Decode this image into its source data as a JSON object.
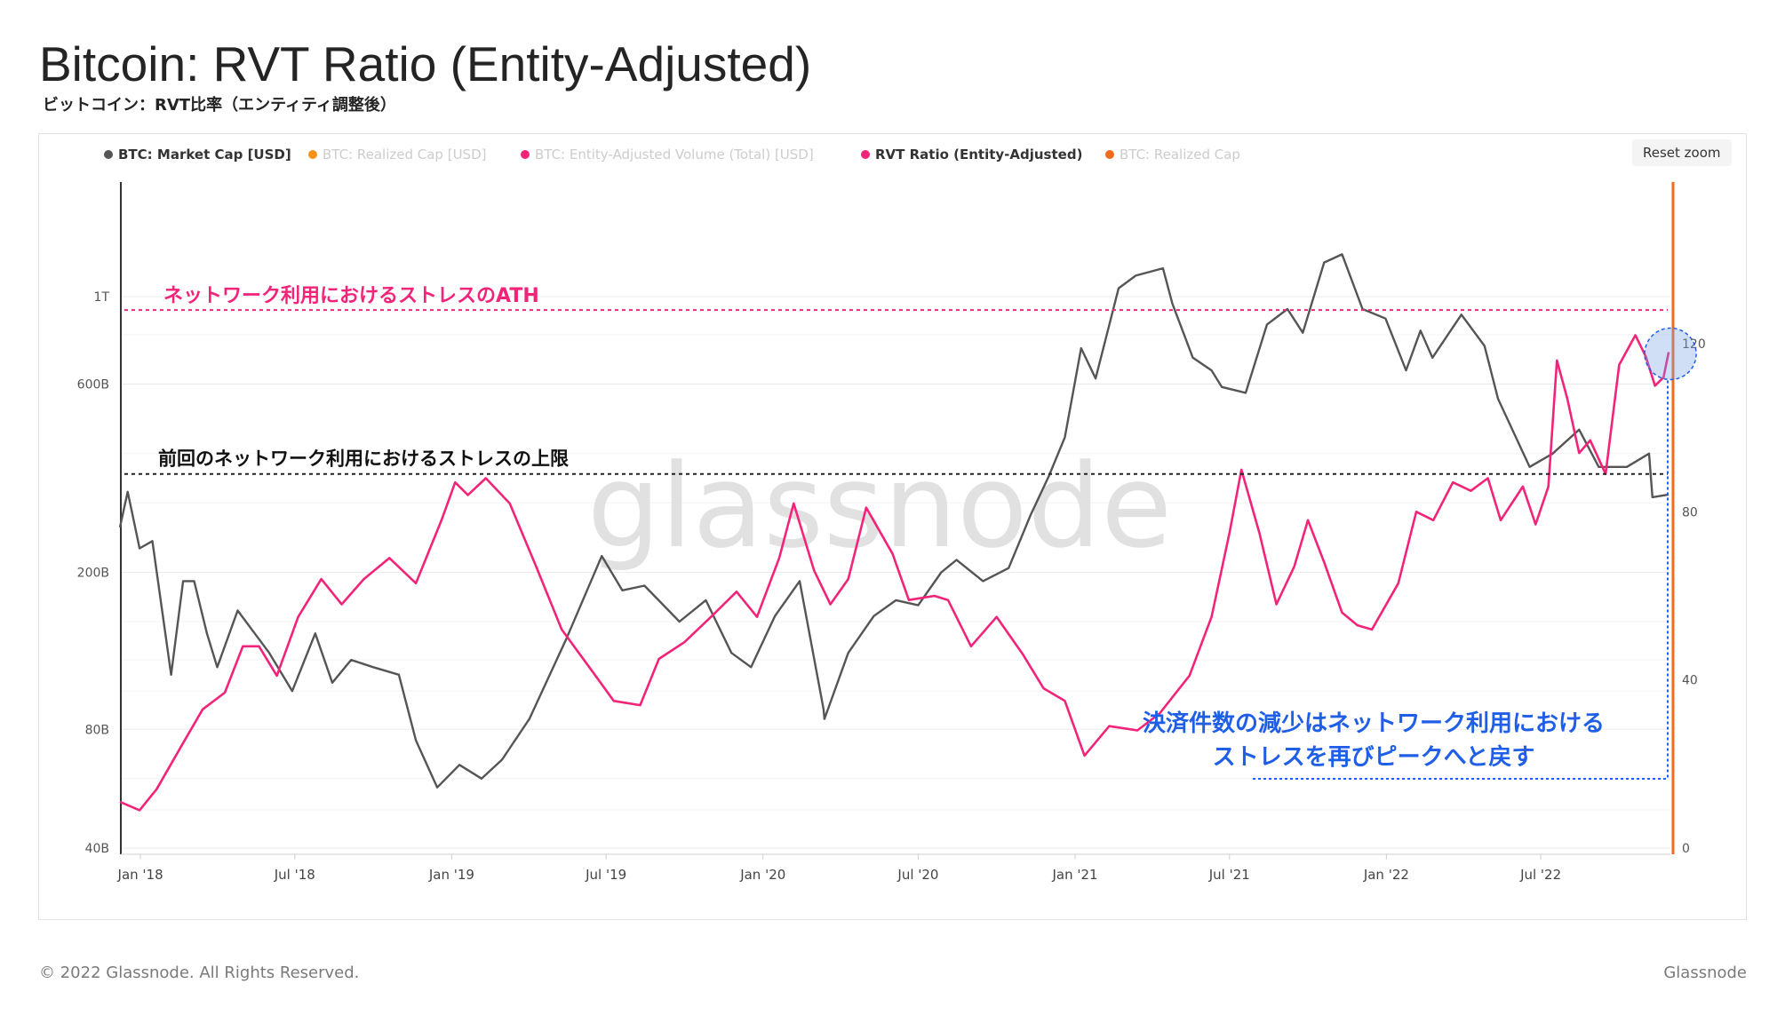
{
  "title": "Bitcoin: RVT Ratio (Entity-Adjusted)",
  "subtitle": "ビットコイン：RVT比率（エンティティ調整後）",
  "reset_zoom_label": "Reset zoom",
  "watermark": "glassnode",
  "footer": {
    "copyright": "© 2022 Glassnode. All Rights Reserved.",
    "brand": "Glassnode"
  },
  "legend": [
    {
      "label": "BTC: Market Cap [USD]",
      "color": "#555555",
      "active": true
    },
    {
      "label": "BTC: Realized Cap [USD]",
      "color": "#f7931a",
      "active": false
    },
    {
      "label": "BTC: Entity-Adjusted Volume (Total) [USD]",
      "color": "#f2247a",
      "active": false
    },
    {
      "label": "RVT Ratio (Entity-Adjusted)",
      "color": "#f2247a",
      "active": true
    },
    {
      "label": "BTC: Realized Cap",
      "color": "#f26b1d",
      "active": false
    }
  ],
  "annotations": {
    "ath_label": "ネットワーク利用におけるストレスのATH",
    "prev_label": "前回のネットワーク利用におけるストレスの上限",
    "note_line1": "決済件数の減少はネットワーク利用における",
    "note_line2": "ストレスを再びピークへと戻す"
  },
  "colors": {
    "market_cap": "#555555",
    "rvt": "#f2247a",
    "ath": "#f2247a",
    "annotation_blue": "#1f5ee6",
    "realized_cap_axis": "#f26b1d"
  },
  "chart_data": {
    "type": "line",
    "x_ticks": [
      "Jan '18",
      "Jul '18",
      "Jan '19",
      "Jul '19",
      "Jan '20",
      "Jul '20",
      "Jan '21",
      "Jul '21",
      "Jan '22",
      "Jul '22"
    ],
    "y_left": {
      "scale": "log",
      "ticks": [
        "40B",
        "80B",
        "200B",
        "600B",
        "1T"
      ]
    },
    "y_right": {
      "scale": "linear",
      "ticks": [
        "0",
        "40",
        "80",
        "120"
      ],
      "range": [
        0,
        120
      ]
    },
    "reference_lines": [
      {
        "name": "ATH",
        "axis": "right",
        "value": 128
      },
      {
        "name": "previous high",
        "axis": "right",
        "value": 89
      }
    ],
    "series": [
      {
        "name": "BTC: Market Cap [USD]",
        "axis": "left",
        "points": [
          [
            "2017-12-08",
            260
          ],
          [
            "2017-12-17",
            320
          ],
          [
            "2017-12-31",
            230
          ],
          [
            "2018-01-15",
            240
          ],
          [
            "2018-02-06",
            110
          ],
          [
            "2018-02-20",
            190
          ],
          [
            "2018-03-05",
            190
          ],
          [
            "2018-03-20",
            140
          ],
          [
            "2018-04-01",
            115
          ],
          [
            "2018-04-25",
            160
          ],
          [
            "2018-05-15",
            140
          ],
          [
            "2018-06-01",
            125
          ],
          [
            "2018-06-28",
            100
          ],
          [
            "2018-07-25",
            140
          ],
          [
            "2018-08-14",
            105
          ],
          [
            "2018-09-05",
            120
          ],
          [
            "2018-10-01",
            115
          ],
          [
            "2018-10-31",
            110
          ],
          [
            "2018-11-20",
            75
          ],
          [
            "2018-12-15",
            57
          ],
          [
            "2019-01-10",
            65
          ],
          [
            "2019-02-05",
            60
          ],
          [
            "2019-03-01",
            67
          ],
          [
            "2019-04-02",
            85
          ],
          [
            "2019-05-15",
            135
          ],
          [
            "2019-06-26",
            220
          ],
          [
            "2019-07-20",
            180
          ],
          [
            "2019-08-15",
            185
          ],
          [
            "2019-09-25",
            150
          ],
          [
            "2019-10-26",
            170
          ],
          [
            "2019-11-25",
            125
          ],
          [
            "2019-12-18",
            115
          ],
          [
            "2020-01-15",
            155
          ],
          [
            "2020-02-13",
            190
          ],
          [
            "2020-03-12",
            90
          ],
          [
            "2020-03-13",
            85
          ],
          [
            "2020-04-10",
            125
          ],
          [
            "2020-05-10",
            155
          ],
          [
            "2020-06-05",
            170
          ],
          [
            "2020-07-01",
            165
          ],
          [
            "2020-07-28",
            200
          ],
          [
            "2020-08-15",
            215
          ],
          [
            "2020-09-15",
            190
          ],
          [
            "2020-10-15",
            205
          ],
          [
            "2020-11-10",
            280
          ],
          [
            "2020-12-01",
            350
          ],
          [
            "2020-12-20",
            440
          ],
          [
            "2021-01-08",
            740
          ],
          [
            "2021-01-25",
            620
          ],
          [
            "2021-02-21",
            1050
          ],
          [
            "2021-03-13",
            1130
          ],
          [
            "2021-04-14",
            1180
          ],
          [
            "2021-04-25",
            960
          ],
          [
            "2021-05-19",
            700
          ],
          [
            "2021-06-10",
            650
          ],
          [
            "2021-06-22",
            590
          ],
          [
            "2021-07-20",
            570
          ],
          [
            "2021-08-14",
            850
          ],
          [
            "2021-09-07",
            930
          ],
          [
            "2021-09-25",
            810
          ],
          [
            "2021-10-20",
            1220
          ],
          [
            "2021-11-10",
            1280
          ],
          [
            "2021-12-04",
            930
          ],
          [
            "2021-12-31",
            880
          ],
          [
            "2022-01-24",
            650
          ],
          [
            "2022-02-10",
            820
          ],
          [
            "2022-02-24",
            700
          ],
          [
            "2022-03-30",
            900
          ],
          [
            "2022-04-26",
            750
          ],
          [
            "2022-05-12",
            550
          ],
          [
            "2022-06-18",
            370
          ],
          [
            "2022-07-15",
            400
          ],
          [
            "2022-08-15",
            460
          ],
          [
            "2022-09-07",
            370
          ],
          [
            "2022-10-10",
            370
          ],
          [
            "2022-11-05",
            400
          ],
          [
            "2022-11-09",
            310
          ],
          [
            "2022-11-28",
            315
          ]
        ]
      },
      {
        "name": "RVT Ratio (Entity-Adjusted)",
        "axis": "right",
        "points": [
          [
            "2017-12-08",
            11
          ],
          [
            "2017-12-31",
            9
          ],
          [
            "2018-01-20",
            14
          ],
          [
            "2018-02-20",
            25
          ],
          [
            "2018-03-15",
            33
          ],
          [
            "2018-04-10",
            37
          ],
          [
            "2018-05-01",
            48
          ],
          [
            "2018-05-20",
            48
          ],
          [
            "2018-06-10",
            41
          ],
          [
            "2018-07-05",
            55
          ],
          [
            "2018-08-01",
            64
          ],
          [
            "2018-08-25",
            58
          ],
          [
            "2018-09-20",
            64
          ],
          [
            "2018-10-20",
            69
          ],
          [
            "2018-11-20",
            63
          ],
          [
            "2018-12-20",
            78
          ],
          [
            "2019-01-05",
            87
          ],
          [
            "2019-01-20",
            84
          ],
          [
            "2019-02-10",
            88
          ],
          [
            "2019-03-10",
            82
          ],
          [
            "2019-04-10",
            67
          ],
          [
            "2019-05-10",
            52
          ],
          [
            "2019-06-15",
            42
          ],
          [
            "2019-07-10",
            35
          ],
          [
            "2019-08-10",
            34
          ],
          [
            "2019-09-01",
            45
          ],
          [
            "2019-10-01",
            49
          ],
          [
            "2019-11-01",
            55
          ],
          [
            "2019-12-01",
            61
          ],
          [
            "2019-12-25",
            55
          ],
          [
            "2020-01-20",
            69
          ],
          [
            "2020-02-06",
            82
          ],
          [
            "2020-03-01",
            66
          ],
          [
            "2020-03-20",
            58
          ],
          [
            "2020-04-10",
            64
          ],
          [
            "2020-05-01",
            81
          ],
          [
            "2020-06-01",
            70
          ],
          [
            "2020-06-20",
            59
          ],
          [
            "2020-07-20",
            60
          ],
          [
            "2020-08-05",
            59
          ],
          [
            "2020-09-01",
            48
          ],
          [
            "2020-10-01",
            55
          ],
          [
            "2020-11-01",
            46
          ],
          [
            "2020-11-25",
            38
          ],
          [
            "2020-12-20",
            35
          ],
          [
            "2021-01-12",
            22
          ],
          [
            "2021-02-10",
            29
          ],
          [
            "2021-03-15",
            28
          ],
          [
            "2021-04-10",
            32
          ],
          [
            "2021-05-15",
            41
          ],
          [
            "2021-06-10",
            55
          ],
          [
            "2021-07-01",
            75
          ],
          [
            "2021-07-15",
            90
          ],
          [
            "2021-08-05",
            75
          ],
          [
            "2021-08-25",
            58
          ],
          [
            "2021-09-15",
            67
          ],
          [
            "2021-10-01",
            78
          ],
          [
            "2021-10-20",
            68
          ],
          [
            "2021-11-10",
            56
          ],
          [
            "2021-11-28",
            53
          ],
          [
            "2021-12-15",
            52
          ],
          [
            "2022-01-15",
            63
          ],
          [
            "2022-02-05",
            80
          ],
          [
            "2022-02-25",
            78
          ],
          [
            "2022-03-20",
            87
          ],
          [
            "2022-04-10",
            85
          ],
          [
            "2022-04-30",
            88
          ],
          [
            "2022-05-15",
            78
          ],
          [
            "2022-06-10",
            86
          ],
          [
            "2022-06-25",
            77
          ],
          [
            "2022-07-10",
            86
          ],
          [
            "2022-07-20",
            116
          ],
          [
            "2022-08-01",
            107
          ],
          [
            "2022-08-15",
            94
          ],
          [
            "2022-08-28",
            97
          ],
          [
            "2022-09-15",
            89
          ],
          [
            "2022-10-01",
            115
          ],
          [
            "2022-10-20",
            122
          ],
          [
            "2022-11-01",
            117
          ],
          [
            "2022-11-12",
            110
          ],
          [
            "2022-11-22",
            112
          ],
          [
            "2022-11-28",
            118
          ]
        ]
      }
    ]
  }
}
